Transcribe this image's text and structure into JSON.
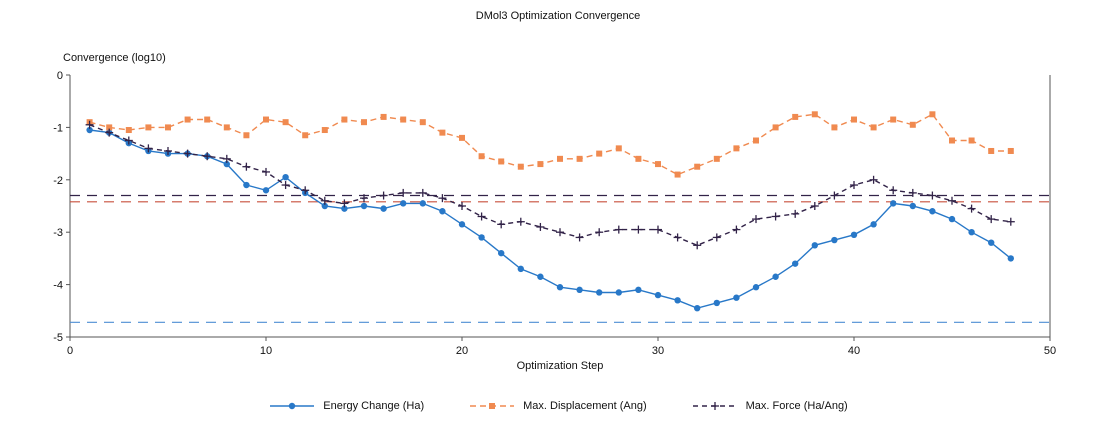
{
  "title": "DMol3 Optimization Convergence",
  "chart_data": {
    "type": "line",
    "title": "DMol3 Optimization Convergence",
    "xlabel": "Optimization Step",
    "ylabel": "Convergence (log10)",
    "xlim": [
      0,
      50
    ],
    "ylim": [
      -5,
      0
    ],
    "xticks": [
      0,
      10,
      20,
      30,
      40,
      50
    ],
    "yticks": [
      0,
      -1,
      -2,
      -3,
      -4,
      -5
    ],
    "grid": false,
    "legend_position": "bottom",
    "x": [
      1,
      2,
      3,
      4,
      5,
      6,
      7,
      8,
      9,
      10,
      11,
      12,
      13,
      14,
      15,
      16,
      17,
      18,
      19,
      20,
      21,
      22,
      23,
      24,
      25,
      26,
      27,
      28,
      29,
      30,
      31,
      32,
      33,
      34,
      35,
      36,
      37,
      38,
      39,
      40,
      41,
      42,
      43,
      44,
      45,
      46,
      47,
      48
    ],
    "series": [
      {
        "name": "Energy Change (Ha)",
        "color": "#2878c8",
        "marker": "circle",
        "dash": "",
        "values": [
          -1.05,
          -1.1,
          -1.3,
          -1.45,
          -1.5,
          -1.5,
          -1.55,
          -1.7,
          -2.1,
          -2.2,
          -1.95,
          -2.25,
          -2.5,
          -2.55,
          -2.5,
          -2.55,
          -2.45,
          -2.45,
          -2.6,
          -2.85,
          -3.1,
          -3.4,
          -3.7,
          -3.85,
          -4.05,
          -4.1,
          -4.15,
          -4.15,
          -4.1,
          -4.2,
          -4.3,
          -4.45,
          -4.35,
          -4.25,
          -4.05,
          -3.85,
          -3.6,
          -3.25,
          -3.15,
          -3.05,
          -2.85,
          -2.45,
          -2.5,
          -2.6,
          -2.75,
          -3.0,
          -3.2,
          -3.5
        ]
      },
      {
        "name": "Max. Displacement (Ang)",
        "color": "#f08a50",
        "marker": "square",
        "dash": "6 4",
        "values": [
          -0.9,
          -1.0,
          -1.05,
          -1.0,
          -1.0,
          -0.85,
          -0.85,
          -1.0,
          -1.15,
          -0.85,
          -0.9,
          -1.15,
          -1.05,
          -0.85,
          -0.9,
          -0.8,
          -0.85,
          -0.9,
          -1.1,
          -1.2,
          -1.55,
          -1.65,
          -1.75,
          -1.7,
          -1.6,
          -1.6,
          -1.5,
          -1.4,
          -1.6,
          -1.7,
          -1.9,
          -1.75,
          -1.6,
          -1.4,
          -1.25,
          -1.0,
          -0.8,
          -0.75,
          -1.0,
          -0.85,
          -1.0,
          -0.85,
          -0.95,
          -0.75,
          -1.25,
          -1.25,
          -1.45,
          -1.45
        ]
      },
      {
        "name": "Max. Force (Ha/Ang)",
        "color": "#322348",
        "marker": "plus",
        "dash": "5 4",
        "values": [
          -0.95,
          -1.1,
          -1.25,
          -1.4,
          -1.45,
          -1.5,
          -1.55,
          -1.6,
          -1.75,
          -1.85,
          -2.1,
          -2.2,
          -2.4,
          -2.45,
          -2.35,
          -2.3,
          -2.25,
          -2.25,
          -2.35,
          -2.5,
          -2.7,
          -2.85,
          -2.8,
          -2.9,
          -3.0,
          -3.1,
          -3.0,
          -2.95,
          -2.95,
          -2.95,
          -3.1,
          -3.25,
          -3.1,
          -2.95,
          -2.75,
          -2.7,
          -2.65,
          -2.5,
          -2.3,
          -2.1,
          -2.0,
          -2.2,
          -2.25,
          -2.3,
          -2.4,
          -2.55,
          -2.75,
          -2.8
        ]
      }
    ],
    "thresholds": [
      {
        "name": "energy-convergence-threshold",
        "value": -4.72,
        "color": "#4f8fd4"
      },
      {
        "name": "displacement-convergence-threshold",
        "value": -2.42,
        "color": "#c9503d"
      },
      {
        "name": "force-convergence-threshold",
        "value": -2.3,
        "color": "#322348"
      }
    ]
  }
}
